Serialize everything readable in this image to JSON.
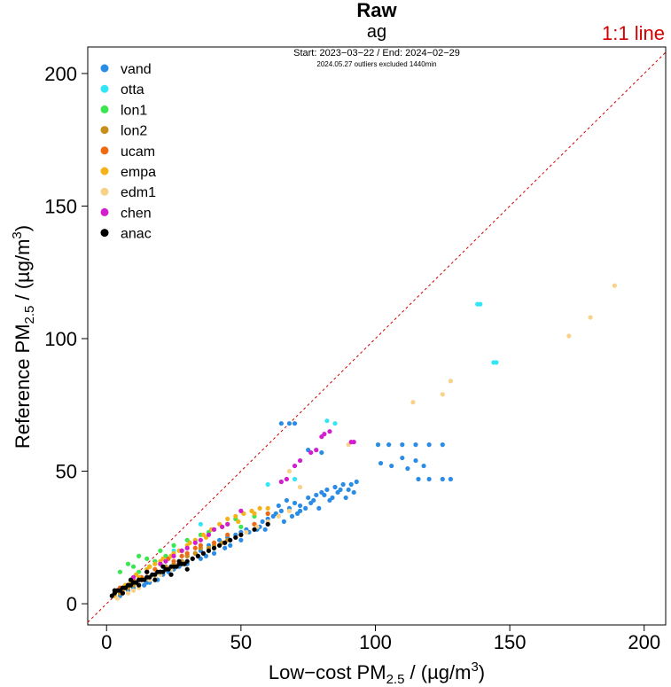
{
  "chart_data": {
    "type": "scatter",
    "title": "Raw",
    "subtitle": "ag",
    "date_range": "Start: 2023−03−22 / End: 2024−02−29",
    "note": "2024.05.27 outliers excluded 1440min",
    "reference_line_label": "1:1 line",
    "reference_line_color": "#d40000",
    "xlabel": {
      "pre": "Low−cost PM",
      "sub": "2.5",
      "post": " / (µg/m",
      "sup": "3",
      "end": ")"
    },
    "ylabel": {
      "pre": "Reference PM",
      "sub": "2.5",
      "post": " / (µg/m",
      "sup": "3",
      "end": ")"
    },
    "xlim": [
      -7,
      208
    ],
    "ylim": [
      -8,
      210
    ],
    "xticks": [
      0,
      50,
      100,
      150,
      200
    ],
    "yticks": [
      0,
      50,
      100,
      150,
      200
    ],
    "grid": false,
    "legend_position": "top-left",
    "series": [
      {
        "name": "vand",
        "color": "#2b8ce6",
        "points": [
          [
            5,
            3
          ],
          [
            8,
            5
          ],
          [
            12,
            7
          ],
          [
            15,
            8
          ],
          [
            18,
            10
          ],
          [
            20,
            12
          ],
          [
            22,
            14
          ],
          [
            25,
            13
          ],
          [
            28,
            16
          ],
          [
            30,
            18
          ],
          [
            32,
            17
          ],
          [
            35,
            20
          ],
          [
            38,
            22
          ],
          [
            40,
            21
          ],
          [
            42,
            24
          ],
          [
            45,
            25
          ],
          [
            48,
            26
          ],
          [
            50,
            27
          ],
          [
            52,
            28
          ],
          [
            55,
            30
          ],
          [
            58,
            31
          ],
          [
            60,
            32
          ],
          [
            62,
            33
          ],
          [
            65,
            35
          ],
          [
            68,
            36
          ],
          [
            70,
            38
          ],
          [
            72,
            37
          ],
          [
            75,
            40
          ],
          [
            78,
            41
          ],
          [
            80,
            42
          ],
          [
            82,
            43
          ],
          [
            85,
            44
          ],
          [
            88,
            45
          ],
          [
            90,
            43
          ],
          [
            93,
            46
          ],
          [
            65,
            68
          ],
          [
            68,
            68
          ],
          [
            70,
            68
          ],
          [
            75,
            58
          ],
          [
            80,
            57
          ],
          [
            101,
            60
          ],
          [
            105,
            60
          ],
          [
            110,
            60
          ],
          [
            115,
            60
          ],
          [
            120,
            60
          ],
          [
            125,
            60
          ],
          [
            102,
            53
          ],
          [
            106,
            52
          ],
          [
            110,
            55
          ],
          [
            115,
            54
          ],
          [
            118,
            52
          ],
          [
            112,
            51
          ],
          [
            116,
            47
          ],
          [
            120,
            47
          ],
          [
            125,
            47
          ],
          [
            128,
            47
          ],
          [
            60,
            30
          ],
          [
            63,
            34
          ],
          [
            66,
            31
          ],
          [
            69,
            33
          ],
          [
            72,
            35
          ],
          [
            76,
            38
          ],
          [
            79,
            36
          ],
          [
            83,
            39
          ],
          [
            86,
            42
          ],
          [
            89,
            40
          ],
          [
            92,
            42
          ],
          [
            46,
            22
          ],
          [
            53,
            27
          ],
          [
            57,
            29
          ],
          [
            40,
            19
          ],
          [
            35,
            17
          ],
          [
            30,
            15
          ],
          [
            27,
            14
          ],
          [
            24,
            11
          ],
          [
            19,
            9
          ],
          [
            16,
            8
          ],
          [
            10,
            6
          ],
          [
            64,
            37
          ],
          [
            67,
            39
          ],
          [
            71,
            34
          ],
          [
            74,
            36
          ],
          [
            77,
            39
          ],
          [
            81,
            41
          ],
          [
            84,
            40
          ],
          [
            87,
            43
          ],
          [
            91,
            45
          ],
          [
            50,
            24
          ],
          [
            56,
            28
          ],
          [
            59,
            28
          ],
          [
            44,
            21
          ],
          [
            37,
            18
          ],
          [
            33,
            19
          ],
          [
            29,
            15
          ],
          [
            23,
            12
          ],
          [
            21,
            11
          ],
          [
            14,
            7
          ]
        ]
      },
      {
        "name": "otta",
        "color": "#33e6f5",
        "points": [
          [
            138,
            113
          ],
          [
            139,
            113
          ],
          [
            144,
            91
          ],
          [
            145,
            91
          ],
          [
            85,
            68
          ],
          [
            82,
            69
          ],
          [
            70,
            47
          ],
          [
            60,
            45
          ],
          [
            35,
            30
          ],
          [
            25,
            20
          ],
          [
            15,
            10
          ]
        ]
      },
      {
        "name": "lon1",
        "color": "#3be651",
        "points": [
          [
            5,
            12
          ],
          [
            8,
            15
          ],
          [
            10,
            14
          ],
          [
            12,
            18
          ],
          [
            15,
            17
          ],
          [
            18,
            16
          ],
          [
            20,
            20
          ],
          [
            25,
            22
          ],
          [
            30,
            24
          ],
          [
            35,
            26
          ],
          [
            40,
            28
          ],
          [
            45,
            30
          ],
          [
            50,
            29
          ],
          [
            55,
            33
          ],
          [
            60,
            34
          ],
          [
            12,
            12
          ],
          [
            16,
            14
          ],
          [
            22,
            18
          ],
          [
            28,
            20
          ],
          [
            33,
            24
          ],
          [
            38,
            27
          ],
          [
            43,
            29
          ],
          [
            48,
            32
          ]
        ]
      },
      {
        "name": "lon2",
        "color": "#c8901a",
        "points": [
          [
            5,
            4
          ],
          [
            10,
            7
          ],
          [
            15,
            10
          ],
          [
            20,
            12
          ],
          [
            25,
            15
          ],
          [
            30,
            18
          ],
          [
            35,
            21
          ],
          [
            40,
            22
          ],
          [
            45,
            24
          ],
          [
            50,
            26
          ],
          [
            8,
            6
          ],
          [
            12,
            9
          ],
          [
            18,
            11
          ],
          [
            22,
            14
          ],
          [
            28,
            16
          ],
          [
            33,
            19
          ],
          [
            38,
            21
          ],
          [
            43,
            23
          ]
        ]
      },
      {
        "name": "ucam",
        "color": "#ef6a14",
        "points": [
          [
            5,
            6
          ],
          [
            10,
            9
          ],
          [
            15,
            12
          ],
          [
            20,
            15
          ],
          [
            25,
            16
          ],
          [
            30,
            19
          ],
          [
            35,
            22
          ],
          [
            40,
            23
          ],
          [
            45,
            26
          ],
          [
            55,
            30
          ],
          [
            60,
            34
          ],
          [
            13,
            10
          ],
          [
            18,
            13
          ],
          [
            23,
            17
          ],
          [
            28,
            18
          ],
          [
            33,
            21
          ]
        ]
      },
      {
        "name": "empa",
        "color": "#f3b41a",
        "points": [
          [
            3,
            3
          ],
          [
            6,
            5
          ],
          [
            9,
            8
          ],
          [
            12,
            10
          ],
          [
            15,
            13
          ],
          [
            18,
            15
          ],
          [
            21,
            17
          ],
          [
            24,
            18
          ],
          [
            27,
            20
          ],
          [
            30,
            22
          ],
          [
            33,
            24
          ],
          [
            36,
            26
          ],
          [
            39,
            28
          ],
          [
            42,
            30
          ],
          [
            45,
            32
          ],
          [
            48,
            33
          ],
          [
            51,
            34
          ],
          [
            54,
            35
          ],
          [
            57,
            36
          ],
          [
            60,
            36
          ],
          [
            7,
            7
          ],
          [
            11,
            11
          ],
          [
            16,
            14
          ],
          [
            20,
            16
          ],
          [
            25,
            19
          ],
          [
            31,
            23
          ],
          [
            37,
            25
          ],
          [
            43,
            29
          ],
          [
            49,
            31
          ],
          [
            55,
            34
          ]
        ]
      },
      {
        "name": "edm1",
        "color": "#f8d288",
        "points": [
          [
            189,
            120
          ],
          [
            180,
            108
          ],
          [
            172,
            101
          ],
          [
            128,
            84
          ],
          [
            125,
            79
          ],
          [
            114,
            76
          ],
          [
            4,
            2
          ],
          [
            8,
            4
          ],
          [
            12,
            6
          ],
          [
            16,
            9
          ],
          [
            20,
            11
          ],
          [
            24,
            13
          ],
          [
            28,
            15
          ],
          [
            32,
            17
          ],
          [
            36,
            19
          ],
          [
            40,
            21
          ],
          [
            44,
            23
          ],
          [
            48,
            25
          ],
          [
            52,
            27
          ],
          [
            56,
            29
          ],
          [
            60,
            31
          ],
          [
            64,
            33
          ],
          [
            68,
            35
          ],
          [
            72,
            44
          ],
          [
            90,
            60
          ],
          [
            68,
            50
          ],
          [
            10,
            5
          ],
          [
            18,
            10
          ],
          [
            26,
            14
          ],
          [
            34,
            18
          ],
          [
            42,
            22
          ],
          [
            50,
            26
          ]
        ]
      },
      {
        "name": "chen",
        "color": "#d21ecf",
        "points": [
          [
            83,
            65
          ],
          [
            81,
            64
          ],
          [
            91,
            61
          ],
          [
            92,
            61
          ],
          [
            80,
            63
          ],
          [
            76,
            57
          ],
          [
            78,
            58
          ],
          [
            70,
            52
          ],
          [
            72,
            54
          ],
          [
            65,
            46
          ],
          [
            67,
            47
          ],
          [
            50,
            35
          ],
          [
            45,
            30
          ],
          [
            40,
            28
          ],
          [
            35,
            24
          ],
          [
            30,
            21
          ],
          [
            25,
            18
          ],
          [
            20,
            15
          ],
          [
            15,
            12
          ],
          [
            10,
            10
          ],
          [
            28,
            20
          ],
          [
            33,
            23
          ],
          [
            38,
            26
          ],
          [
            43,
            29
          ],
          [
            22,
            16
          ]
        ]
      },
      {
        "name": "anac",
        "color": "#000000",
        "points": [
          [
            2,
            3
          ],
          [
            3,
            4
          ],
          [
            4,
            5
          ],
          [
            5,
            5
          ],
          [
            6,
            6
          ],
          [
            7,
            6
          ],
          [
            8,
            7
          ],
          [
            9,
            7
          ],
          [
            10,
            8
          ],
          [
            11,
            8
          ],
          [
            12,
            9
          ],
          [
            13,
            9
          ],
          [
            14,
            9
          ],
          [
            15,
            10
          ],
          [
            16,
            10
          ],
          [
            17,
            11
          ],
          [
            18,
            11
          ],
          [
            19,
            12
          ],
          [
            20,
            12
          ],
          [
            21,
            12
          ],
          [
            22,
            13
          ],
          [
            23,
            13
          ],
          [
            24,
            14
          ],
          [
            25,
            14
          ],
          [
            26,
            14
          ],
          [
            27,
            15
          ],
          [
            28,
            15
          ],
          [
            29,
            15
          ],
          [
            30,
            16
          ],
          [
            32,
            17
          ],
          [
            34,
            18
          ],
          [
            36,
            19
          ],
          [
            38,
            20
          ],
          [
            40,
            21
          ],
          [
            42,
            22
          ],
          [
            44,
            23
          ],
          [
            46,
            24
          ],
          [
            48,
            25
          ],
          [
            50,
            26
          ],
          [
            55,
            28
          ],
          [
            60,
            30
          ],
          [
            3,
            5
          ],
          [
            6,
            4
          ],
          [
            9,
            9
          ],
          [
            12,
            7
          ],
          [
            15,
            12
          ],
          [
            18,
            9
          ],
          [
            21,
            14
          ],
          [
            24,
            11
          ],
          [
            27,
            16
          ],
          [
            30,
            13
          ]
        ]
      }
    ]
  }
}
